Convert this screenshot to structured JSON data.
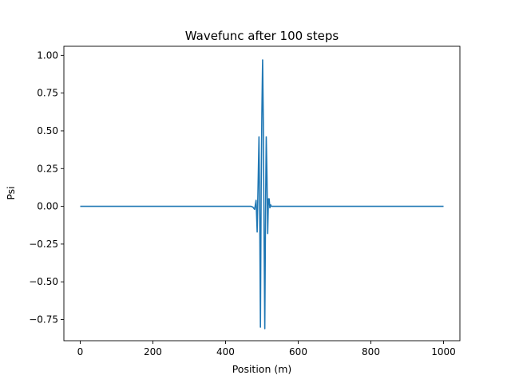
{
  "chart_data": {
    "type": "line",
    "title": "Wavefunc after 100 steps",
    "xlabel": "Position (m)",
    "ylabel": "Psi",
    "xlim": [
      -45,
      1045
    ],
    "ylim": [
      -0.89,
      1.06
    ],
    "grid": false,
    "legend": "none",
    "x_ticks": [
      0,
      200,
      400,
      600,
      800,
      1000
    ],
    "x_tick_labels": [
      "0",
      "200",
      "400",
      "600",
      "800",
      "1000"
    ],
    "y_ticks": [
      1.0,
      0.75,
      0.5,
      0.25,
      0.0,
      -0.25,
      -0.5,
      -0.75
    ],
    "y_tick_labels": [
      "1.00",
      "0.75",
      "0.50",
      "0.25",
      "0.00",
      "−0.25",
      "−0.50",
      "−0.75"
    ],
    "series": [
      {
        "color": "#1f77b4",
        "x": [
          0,
          100,
          200,
          300,
          400,
          470,
          475,
          480,
          484,
          487,
          490,
          492,
          494,
          496,
          498,
          500,
          502,
          504,
          506,
          508,
          510,
          512,
          514,
          516,
          518,
          520,
          522,
          524,
          526,
          528,
          530,
          533,
          537,
          540,
          545,
          550,
          600,
          700,
          800,
          900,
          1000
        ],
        "y": [
          0,
          0,
          0,
          0,
          0,
          0,
          -0.005,
          -0.02,
          0.04,
          -0.17,
          0.2,
          0.46,
          -0.05,
          -0.8,
          0.1,
          0.62,
          0.97,
          0.55,
          -0.2,
          -0.81,
          -0.05,
          0.46,
          0.2,
          -0.18,
          0.05,
          0.05,
          -0.01,
          0.01,
          0,
          0,
          0,
          0,
          0,
          0,
          0,
          0,
          0,
          0,
          0,
          0,
          0
        ]
      }
    ]
  }
}
